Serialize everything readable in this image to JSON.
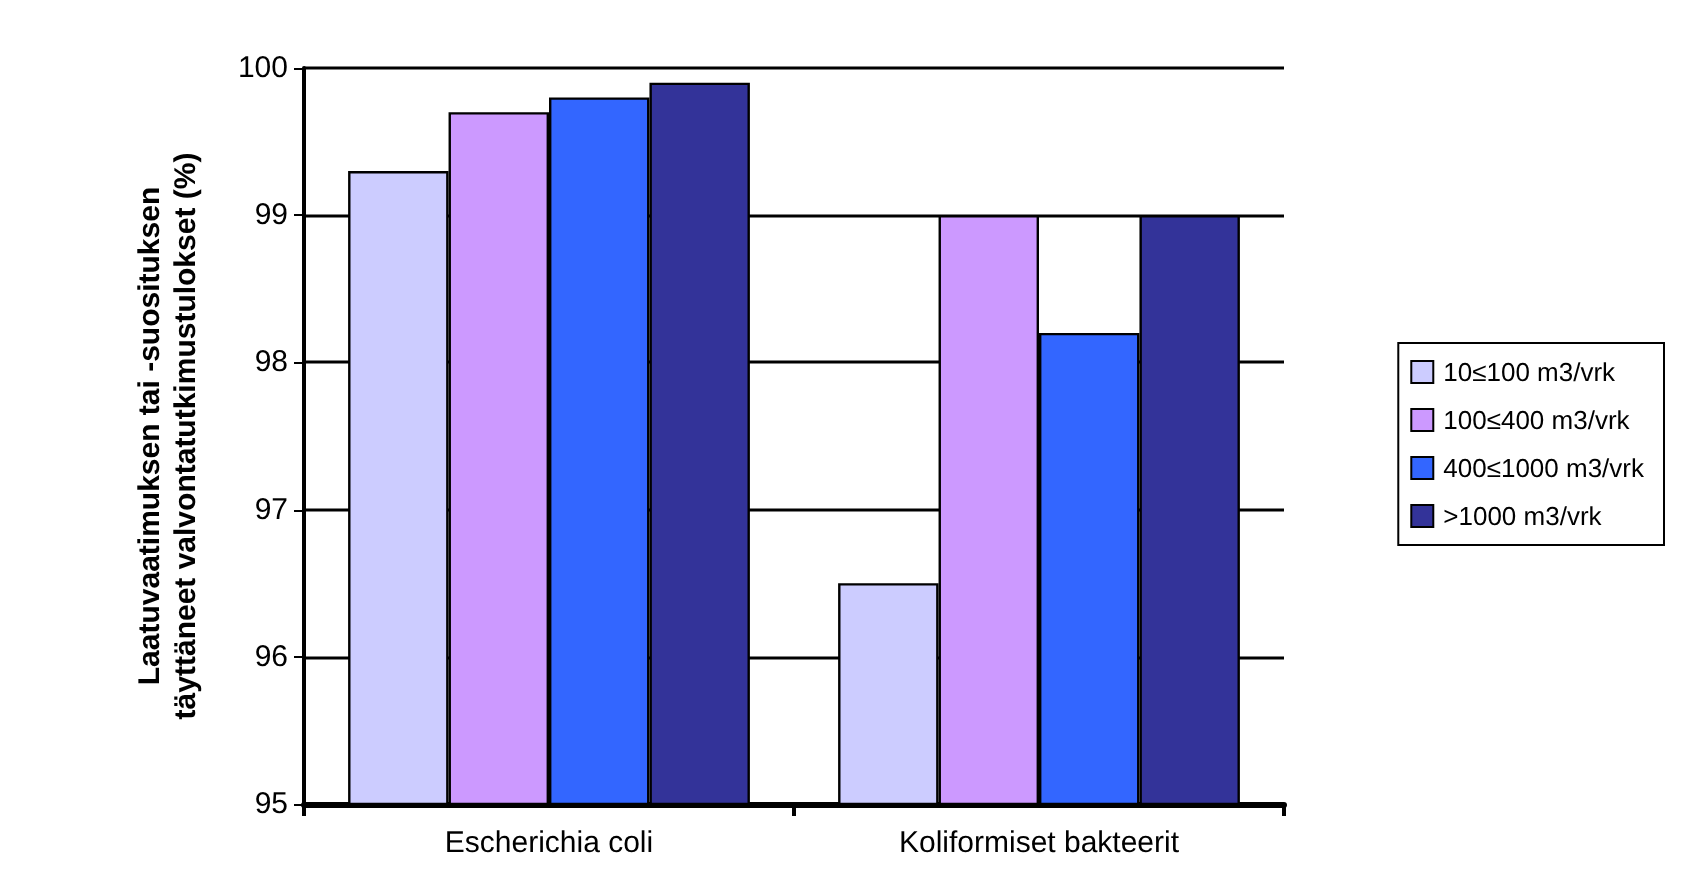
{
  "chart_data": {
    "type": "bar",
    "ylabel": "Laatuvaatimuksen tai -suosituksen täyttäneet valvontatutkimustulokset (%)",
    "categories": [
      "Escherichia coli",
      "Koliformiset bakteerit"
    ],
    "series": [
      {
        "name": "10≤100 m3/vrk",
        "color": "#ccccff",
        "values": [
          99.3,
          96.5
        ]
      },
      {
        "name": "100≤400 m3/vrk",
        "color": "#cc99ff",
        "values": [
          99.7,
          99.0
        ]
      },
      {
        "name": "400≤1000 m3/vrk",
        "color": "#3366ff",
        "values": [
          99.8,
          98.2
        ]
      },
      {
        "name": ">1000 m3/vrk",
        "color": "#333399",
        "values": [
          99.9,
          99.0
        ]
      }
    ],
    "ylim": [
      95,
      100
    ],
    "yticks": [
      95,
      96,
      97,
      98,
      99,
      100
    ],
    "grid": "y",
    "legend": "right"
  }
}
